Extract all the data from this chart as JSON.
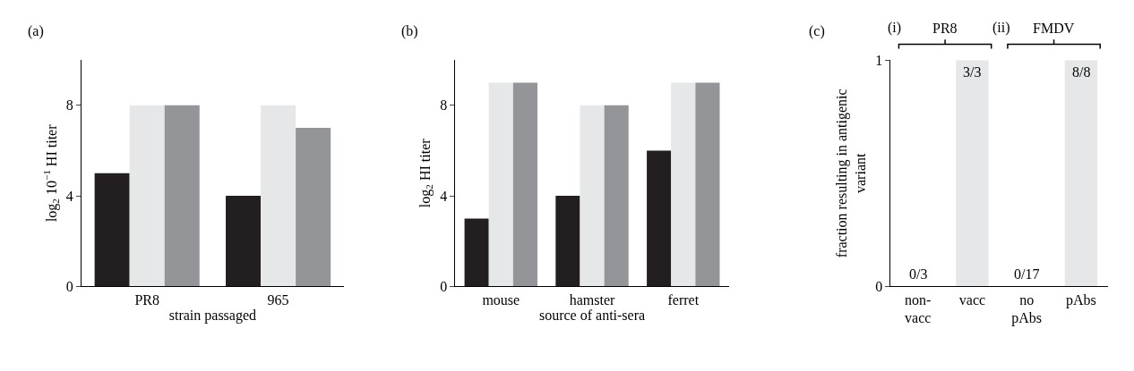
{
  "chart_data": [
    {
      "type": "bar",
      "title": "(a)",
      "xlabel": "strain passaged",
      "ylabel": "log$_{2}$ 10$^{−1}$ HI titer",
      "categories": [
        "PR8",
        "965"
      ],
      "series": [
        {
          "color": "#231f20",
          "values": [
            5,
            4
          ]
        },
        {
          "color": "#e6e7e8",
          "values": [
            8,
            8
          ]
        },
        {
          "color": "#939598",
          "values": [
            8,
            7
          ]
        }
      ],
      "ylim": [
        0,
        10
      ],
      "yticks": [
        0,
        4,
        8
      ]
    },
    {
      "type": "bar",
      "title": "(b)",
      "xlabel": "source of anti-sera",
      "ylabel": "log$_{2}$ HI titer",
      "categories": [
        "mouse",
        "hamster",
        "ferret"
      ],
      "series": [
        {
          "color": "#231f20",
          "values": [
            3,
            4,
            6
          ]
        },
        {
          "color": "#e6e7e8",
          "values": [
            9,
            8,
            9
          ]
        },
        {
          "color": "#939598",
          "values": [
            9,
            8,
            9
          ]
        }
      ],
      "ylim": [
        0,
        10
      ],
      "yticks": [
        0,
        4,
        8
      ]
    },
    {
      "type": "bar",
      "title": "(c)",
      "ylabel": "fraction resulting in antigenic\nvariant",
      "categories": [
        "non-\nvacc",
        "vacc",
        "no\npAbs",
        "pAbs"
      ],
      "values": [
        0,
        1,
        0,
        1
      ],
      "color": "#e6e7e8",
      "value_labels": [
        "0/3",
        "3/3",
        "0/17",
        "8/8"
      ],
      "ylim": [
        0,
        1
      ],
      "yticks": [
        0,
        1
      ],
      "annotations": [
        "(i)",
        "PR8",
        "(ii)",
        "FMDV"
      ]
    }
  ]
}
